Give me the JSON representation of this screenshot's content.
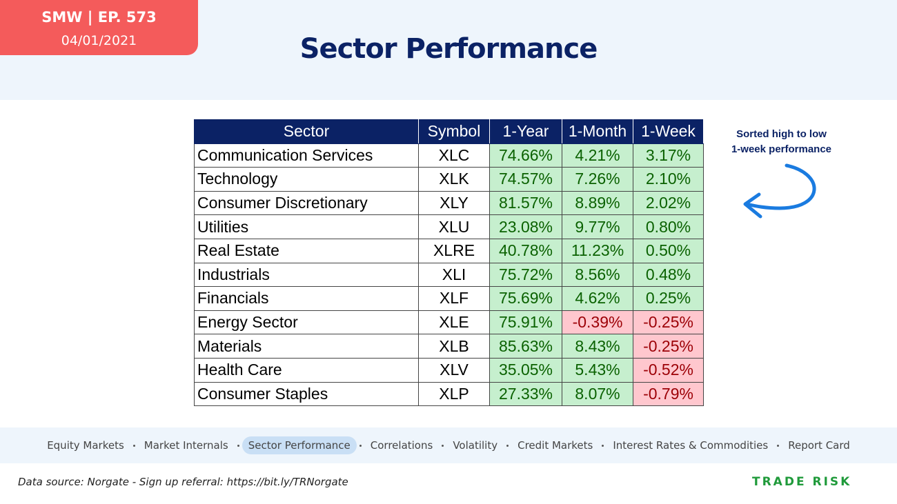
{
  "header": {
    "episode": "SMW | EP. 573",
    "date": "04/01/2021",
    "title": "Sector Performance"
  },
  "table": {
    "columns": [
      "Sector",
      "Symbol",
      "1-Year",
      "1-Month",
      "1-Week"
    ],
    "rows": [
      [
        "Communication Services",
        "XLC",
        "74.66%",
        "4.21%",
        "3.17%"
      ],
      [
        "Technology",
        "XLK",
        "74.57%",
        "7.26%",
        "2.10%"
      ],
      [
        "Consumer Discretionary",
        "XLY",
        "81.57%",
        "8.89%",
        "2.02%"
      ],
      [
        "Utilities",
        "XLU",
        "23.08%",
        "9.77%",
        "0.80%"
      ],
      [
        "Real Estate",
        "XLRE",
        "40.78%",
        "11.23%",
        "0.50%"
      ],
      [
        "Industrials",
        "XLI",
        "75.72%",
        "8.56%",
        "0.48%"
      ],
      [
        "Financials",
        "XLF",
        "75.69%",
        "4.62%",
        "0.25%"
      ],
      [
        "Energy Sector",
        "XLE",
        "75.91%",
        "-0.39%",
        "-0.25%"
      ],
      [
        "Materials",
        "XLB",
        "85.63%",
        "8.43%",
        "-0.25%"
      ],
      [
        "Health Care",
        "XLV",
        "35.05%",
        "5.43%",
        "-0.52%"
      ],
      [
        "Consumer Staples",
        "XLP",
        "27.33%",
        "8.07%",
        "-0.79%"
      ]
    ]
  },
  "note": [
    "Sorted high to low",
    "1-week performance"
  ],
  "nav": {
    "items": [
      "Equity Markets",
      "Market Internals",
      "Sector Performance",
      "Correlations",
      "Volatility",
      "Credit Markets",
      "Interest Rates & Commodities",
      "Report Card"
    ],
    "active": 2
  },
  "footer": {
    "source": "Data source: Norgate - Sign up referral: https://bit.ly/TRNorgate",
    "brand": "TRADE RISK"
  }
}
